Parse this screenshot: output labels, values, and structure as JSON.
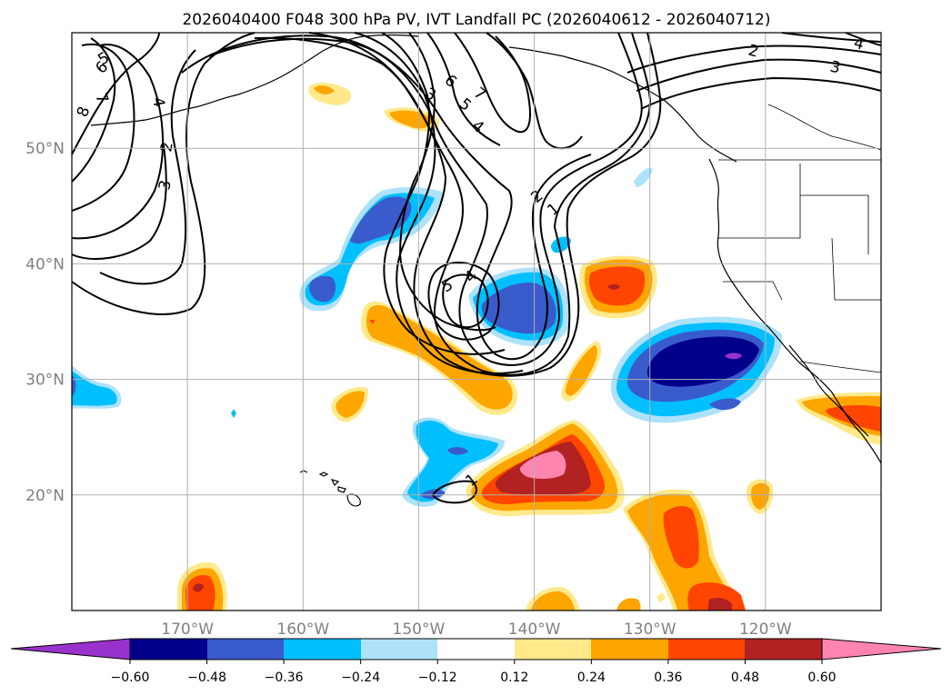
{
  "title": "2026040400 F048 300 hPa PV, IVT Landfall PC (2026040612 - 2026040712)",
  "map": {
    "extent": {
      "lon_min": -180,
      "lon_max": -110,
      "lat_min": 10,
      "lat_max": 60
    },
    "lat_labels": [
      {
        "lat": 50,
        "text": "50°N"
      },
      {
        "lat": 40,
        "text": "40°N"
      },
      {
        "lat": 30,
        "text": "30°N"
      },
      {
        "lat": 20,
        "text": "20°N"
      }
    ],
    "lon_labels": [
      {
        "lon": -170,
        "text": "170°W"
      },
      {
        "lon": -160,
        "text": "160°W"
      },
      {
        "lon": -150,
        "text": "150°W"
      },
      {
        "lon": -140,
        "text": "140°W"
      },
      {
        "lon": -130,
        "text": "130°W"
      },
      {
        "lon": -120,
        "text": "120°W"
      }
    ],
    "pv_contour_labels": [
      "5",
      "6",
      "7",
      "8",
      "4",
      "2",
      "3",
      "3",
      "6",
      "5",
      "7",
      "4",
      "2",
      "1",
      "2",
      "3",
      "4",
      "5",
      "4",
      "1",
      "2",
      "3",
      "1"
    ]
  },
  "colorbar": {
    "tick_labels": [
      "−0.60",
      "−0.48",
      "−0.36",
      "−0.24",
      "−0.12",
      "0.12",
      "0.24",
      "0.36",
      "0.48",
      "0.60"
    ],
    "colors": {
      "below": "#9932CC",
      "b1": "#00008B",
      "b2": "#3A5BCC",
      "b3": "#00BFFF",
      "b4": "#ADE2FA",
      "b5": "#FFFFFF",
      "b6": "#FFE98A",
      "b7": "#FFA500",
      "b8": "#FF4500",
      "b9": "#B22222",
      "above": "#FF85B0"
    }
  },
  "colors": {
    "gridline": "#b0b0b0",
    "land_outline": "#000000",
    "neg_purple": "#9932CC",
    "neg_navy": "#00008B",
    "neg_blue": "#3A5BCC",
    "neg_cyan": "#00BFFF",
    "neg_light": "#ADE2FA",
    "pos_yellow": "#FFE98A",
    "pos_orange": "#FFA500",
    "pos_redorange": "#FF4500",
    "pos_red": "#B22222",
    "pos_pink": "#FF85B0"
  }
}
